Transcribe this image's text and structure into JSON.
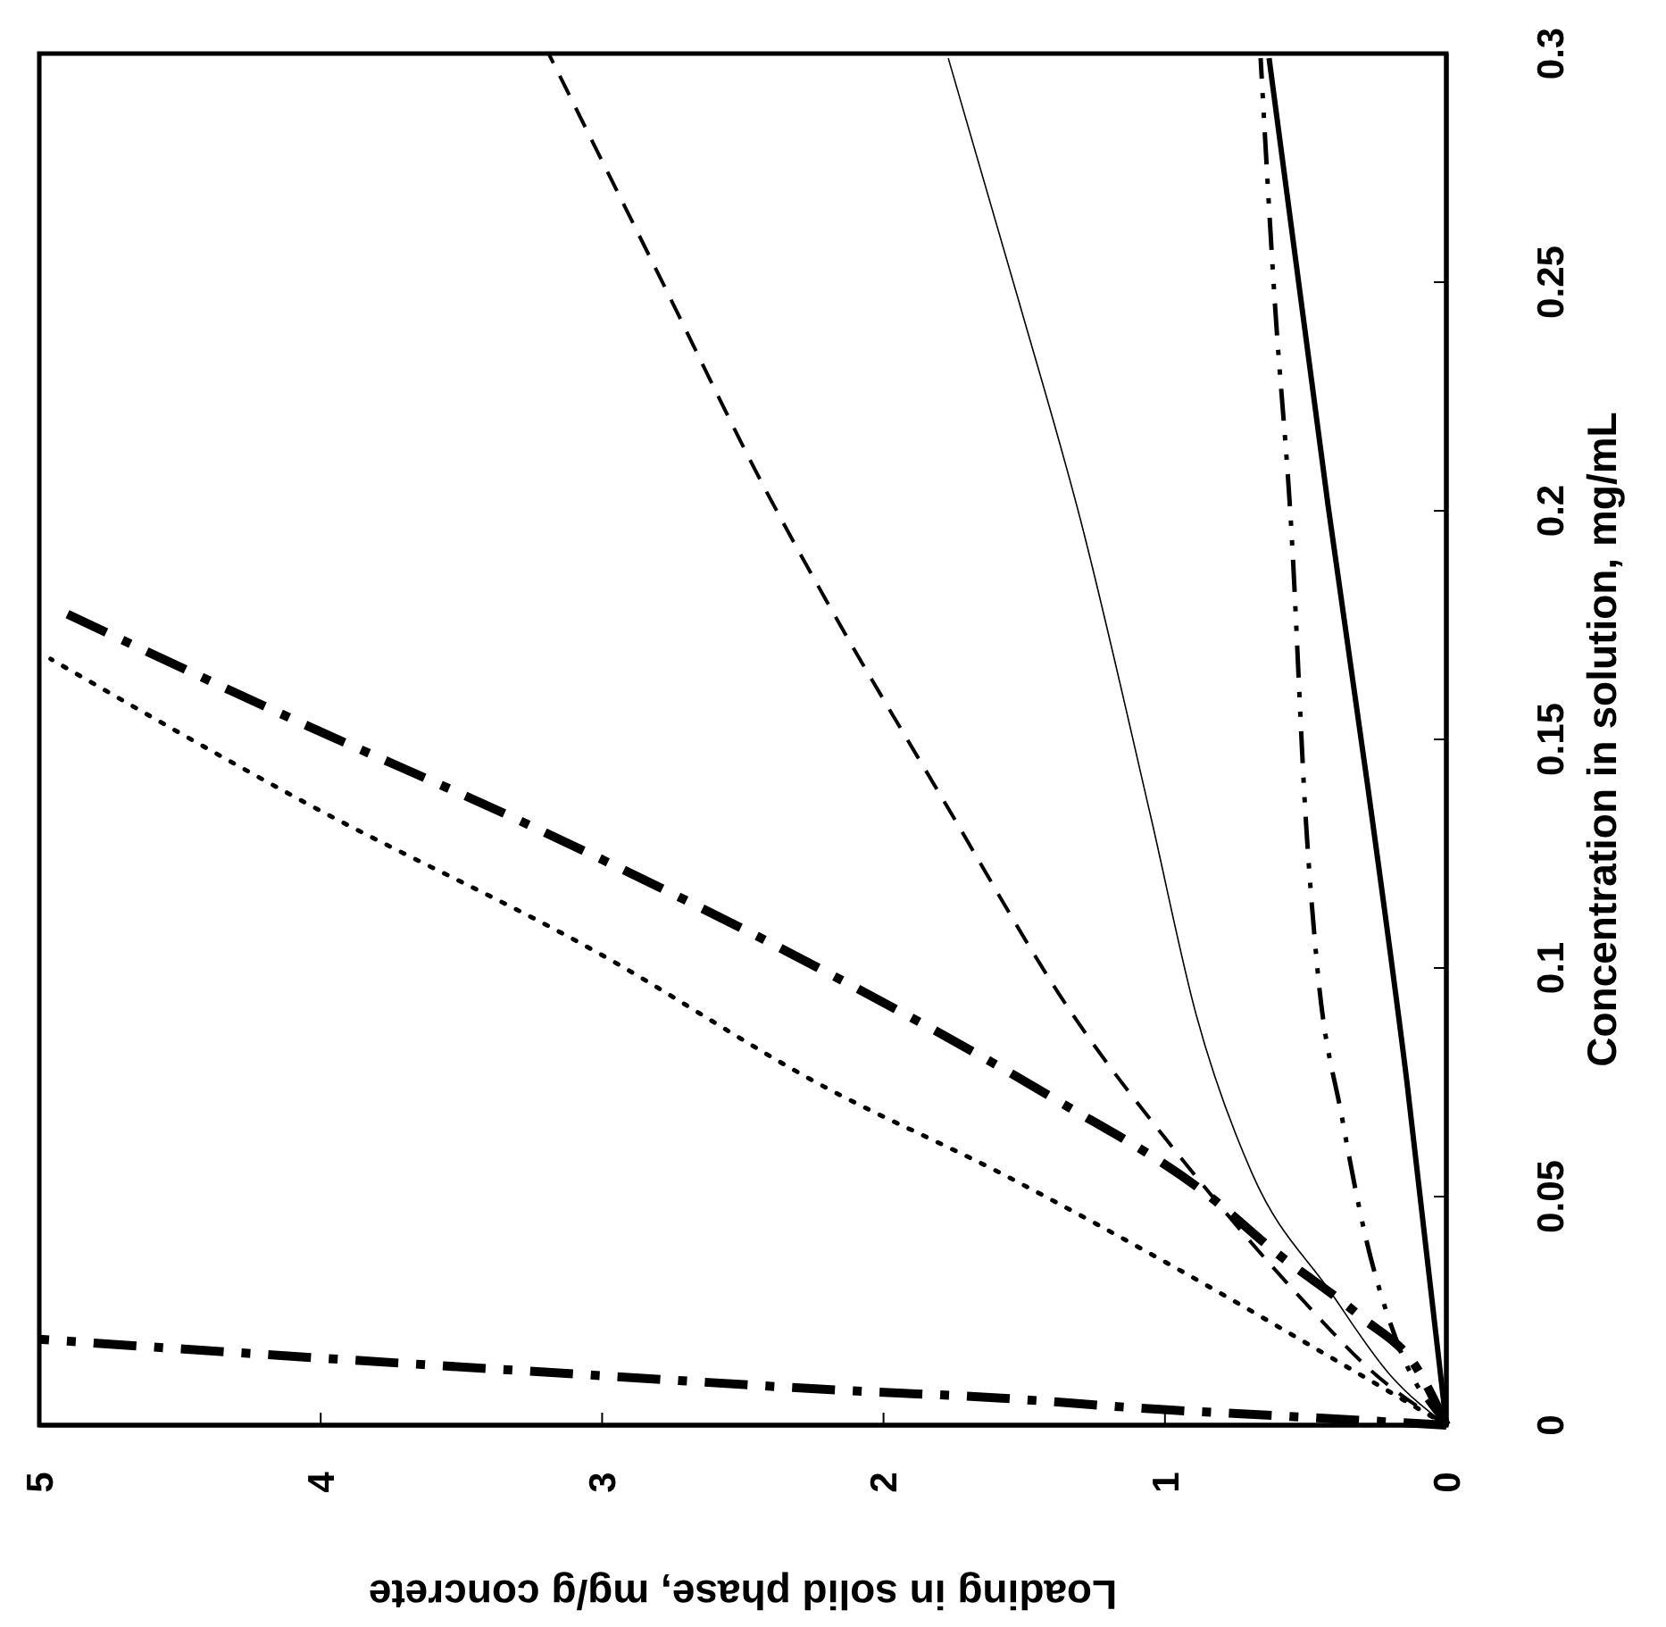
{
  "chart_data": {
    "type": "line",
    "xlabel": "Loading in solid phase, mg/g concrete",
    "ylabel": "Concentration in solution, mg/mL",
    "xlim": [
      5,
      0
    ],
    "xticks": [
      5,
      4,
      3,
      2,
      1,
      0
    ],
    "ylim": [
      0,
      0.3
    ],
    "yticks": [
      0,
      0.05,
      0.1,
      0.15,
      0.2,
      0.25,
      0.3
    ],
    "series": [
      {
        "color": "#000000",
        "line_style": "dashdot",
        "values": [
          0,
          0.002,
          0.0035,
          0.0059,
          0.0078,
          0.0109,
          0.0156,
          0.0188
        ],
        "x": [
          0,
          0.58,
          1.03,
          1.58,
          2.2,
          3.02,
          4.23,
          5
        ]
      },
      {
        "color": "#000000",
        "line_style": "dotted",
        "values": [
          0,
          0.013,
          0.034,
          0.055,
          0.074,
          0.1035,
          0.136,
          0.1676
        ],
        "x": [
          0,
          0.36,
          0.95,
          1.58,
          2.21,
          3.02,
          4.05,
          4.96
        ]
      },
      {
        "color": "#000000",
        "line_style": "dashdot",
        "values": [
          0,
          0.012,
          0.024,
          0.038,
          0.05,
          0.072,
          0.099,
          0.131,
          0.155,
          0.1777
        ],
        "x": [
          0,
          0.1,
          0.31,
          0.61,
          0.84,
          1.41,
          2.2,
          3.25,
          4.12,
          4.91
        ]
      },
      {
        "color": "#000000",
        "line_style": "dashed",
        "values": [
          0,
          0.011,
          0.028,
          0.059,
          0.09,
          0.137,
          0.18,
          0.2035,
          0.253,
          0.3
        ],
        "x": [
          0,
          0.25,
          0.52,
          0.95,
          1.33,
          1.79,
          2.2,
          2.41,
          2.81,
          3.19
        ]
      },
      {
        "color": "#000000",
        "line_style": "solid",
        "values": [
          0,
          0.011,
          0.029,
          0.055,
          0.09,
          0.133,
          0.198,
          0.246,
          0.299
        ],
        "x": [
          0,
          0.2,
          0.41,
          0.69,
          0.89,
          1.05,
          1.3,
          1.52,
          1.77
        ]
      },
      {
        "color": "#000000",
        "line_style": "dashdotdot",
        "values": [
          0,
          0.019,
          0.042,
          0.067,
          0.101,
          0.133,
          0.195,
          0.246,
          0.299
        ],
        "x": [
          0,
          0.18,
          0.29,
          0.37,
          0.46,
          0.5,
          0.55,
          0.61,
          0.66
        ]
      },
      {
        "color": "#000000",
        "line_style": "solid",
        "values": [
          0,
          0.075,
          0.14,
          0.201,
          0.299
        ],
        "x": [
          0,
          0.14,
          0.28,
          0.42,
          0.63
        ]
      }
    ]
  }
}
